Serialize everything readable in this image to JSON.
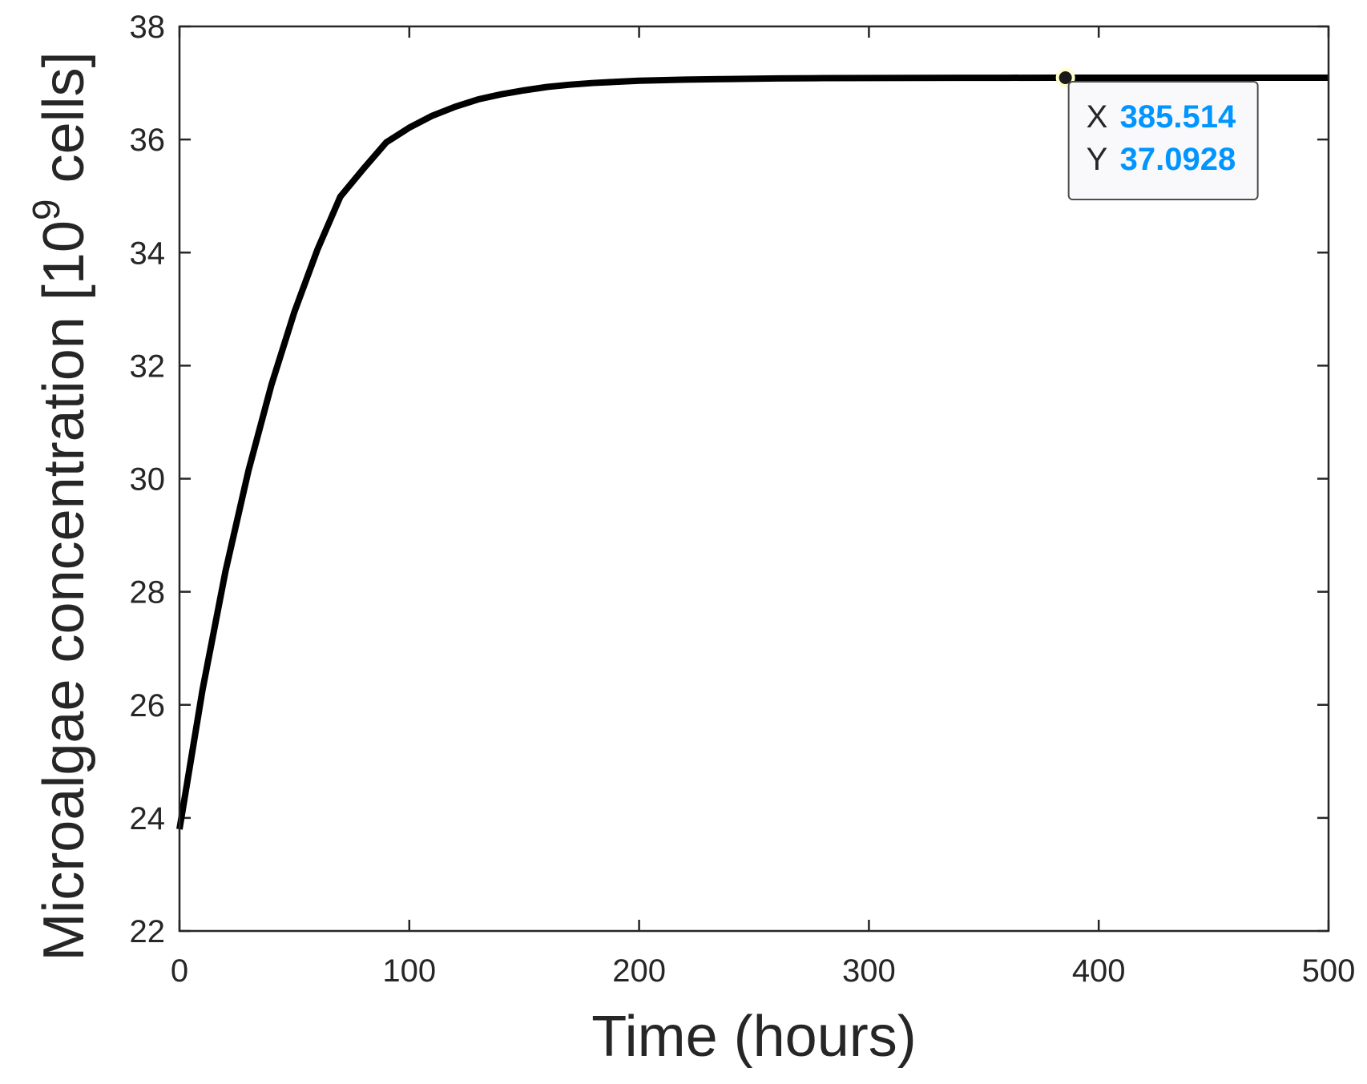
{
  "chart_data": {
    "type": "line",
    "title": "",
    "xlabel": "Time (hours)",
    "ylabel": {
      "prefix": "Microalgae concentration [10",
      "superscript": "9",
      "suffix": " cells]"
    },
    "xlim": [
      0,
      500
    ],
    "ylim": [
      22,
      38
    ],
    "xticks": [
      "0",
      "100",
      "200",
      "300",
      "400",
      "500"
    ],
    "yticks": [
      "22",
      "24",
      "26",
      "28",
      "30",
      "32",
      "34",
      "36",
      "38"
    ],
    "grid": false,
    "line_color": "#000000",
    "series": [
      {
        "x": [
          0,
          10,
          20,
          30,
          40,
          50,
          60,
          70,
          80,
          90,
          100,
          110,
          120,
          130,
          140,
          150,
          160,
          170,
          180,
          190,
          200,
          220,
          240,
          260,
          280,
          300,
          320,
          340,
          360,
          380,
          400,
          420,
          440,
          460,
          480,
          500
        ],
        "y": [
          23.8,
          26.26,
          28.36,
          30.14,
          31.66,
          32.95,
          34.05,
          34.99,
          35.48,
          35.95,
          36.21,
          36.42,
          36.58,
          36.71,
          36.8,
          36.87,
          36.93,
          36.97,
          37.0,
          37.02,
          37.04,
          37.06,
          37.07,
          37.08,
          37.085,
          37.088,
          37.09,
          37.091,
          37.092,
          37.0925,
          37.093,
          37.093,
          37.093,
          37.093,
          37.093,
          37.093
        ]
      }
    ],
    "datatip": {
      "x_key": "X",
      "y_key": "Y",
      "x_value": "385.514",
      "y_value": "37.0928",
      "x": 385.514,
      "y": 37.0928,
      "value_color": "#0095ff",
      "marker_color": "#1a1a1a",
      "marker_ring_color": "#ffffcc"
    }
  }
}
